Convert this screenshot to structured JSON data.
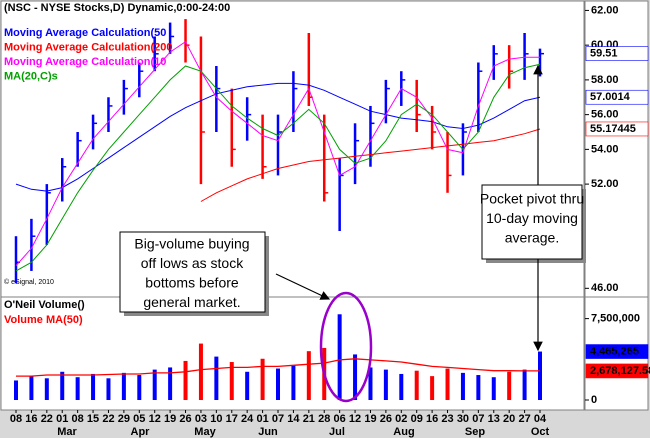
{
  "chart_data": {
    "type": "ohlc",
    "title": "(NSC - NYSE Stocks,D) Dynamic,0:00-24:00",
    "copyright": "© eSignal, 2010",
    "categories": [
      "08",
      "16",
      "22",
      "01",
      "08",
      "15",
      "22",
      "29",
      "05",
      "12",
      "19",
      "26",
      "03",
      "10",
      "17",
      "24",
      "01",
      "07",
      "14",
      "21",
      "28",
      "06",
      "12",
      "19",
      "26",
      "02",
      "09",
      "16",
      "23",
      "30",
      "07",
      "13",
      "20",
      "27",
      "04"
    ],
    "months": [
      "Mar",
      "Apr",
      "May",
      "Jun",
      "Jul",
      "Aug",
      "Sep",
      "Oct"
    ],
    "high": [
      49,
      50,
      52,
      53.5,
      55,
      56,
      57,
      58,
      59,
      60.5,
      61.3,
      61.5,
      60.5,
      58.8,
      57.5,
      57,
      56,
      56,
      58.5,
      60.7,
      56,
      53.5,
      55.5,
      56.5,
      58,
      58.5,
      58,
      56.5,
      55,
      55.5,
      59,
      60,
      60,
      60.7,
      59.8
    ],
    "low": [
      46.3,
      47,
      48.5,
      51,
      53,
      54,
      55,
      56,
      57,
      58.5,
      59.5,
      59,
      52,
      55,
      53,
      54.5,
      52.3,
      52.5,
      55,
      56.5,
      51,
      49.3,
      52,
      53,
      55.5,
      56.5,
      55,
      54,
      51.5,
      52.5,
      55,
      58,
      57.5,
      58,
      58.2
    ],
    "close": [
      47.5,
      49,
      51.5,
      53,
      54.5,
      55.5,
      56.5,
      57.5,
      58.5,
      59.5,
      60.5,
      60,
      55,
      57.5,
      54,
      56,
      53,
      55,
      57.5,
      57,
      51.5,
      52.5,
      54.5,
      55.5,
      57.5,
      58,
      56,
      55,
      52.5,
      55,
      58.5,
      59.5,
      58.5,
      59.5,
      59.51
    ],
    "close_label": "59.51",
    "up_color": "#0000ff",
    "down_color": "#ff0000",
    "ylim": [
      45.5,
      62.6
    ],
    "yticks": [
      {
        "value": 46,
        "label": "46.00"
      },
      {
        "value": 52,
        "label": "52.00"
      },
      {
        "value": 54,
        "label": "54.00"
      },
      {
        "value": 56,
        "label": "56.00"
      },
      {
        "value": 58,
        "label": "58.00"
      },
      {
        "value": 60,
        "label": "60.00"
      },
      {
        "value": 62,
        "label": "62.00"
      }
    ],
    "series": [
      {
        "name": "Moving Average Calculation(50",
        "color": "#0000ff",
        "last_label": "57.0014",
        "values": [
          52.0,
          51.7,
          51.6,
          51.8,
          52.3,
          52.9,
          53.5,
          54.1,
          54.7,
          55.3,
          55.9,
          56.4,
          56.8,
          57.2,
          57.4,
          57.6,
          57.7,
          57.8,
          57.8,
          57.7,
          57.4,
          57.0,
          56.6,
          56.2,
          56.0,
          55.8,
          55.7,
          55.6,
          55.3,
          55.2,
          55.4,
          55.8,
          56.3,
          56.8,
          57.0014
        ]
      },
      {
        "name": "Moving Average Calculation(200",
        "color": "#ff0000",
        "last_label": "55.17445",
        "values": [
          null,
          null,
          null,
          null,
          null,
          null,
          null,
          null,
          null,
          null,
          null,
          null,
          51.0,
          51.5,
          51.9,
          52.3,
          52.6,
          52.9,
          53.1,
          53.3,
          53.4,
          53.5,
          53.6,
          53.7,
          53.8,
          53.9,
          54.0,
          54.1,
          54.2,
          54.3,
          54.4,
          54.5,
          54.7,
          54.9,
          55.17445
        ]
      },
      {
        "name": "Moving Average Calculation(10",
        "color": "#ff00ff",
        "values": [
          47.3,
          48.3,
          50.0,
          51.8,
          53.2,
          54.6,
          55.6,
          56.6,
          57.6,
          58.6,
          59.6,
          60.2,
          58.5,
          57.0,
          56.2,
          55.5,
          54.8,
          54.5,
          56.0,
          57.5,
          55.0,
          52.5,
          53.0,
          54.5,
          56.0,
          57.5,
          57.0,
          55.8,
          54.0,
          53.8,
          56.5,
          58.8,
          59.2,
          59.3,
          59.3
        ]
      },
      {
        "name": "MA(20,C)s",
        "color": "#00a000",
        "values": [
          47.0,
          47.5,
          48.5,
          50.0,
          51.5,
          52.8,
          54.0,
          55.0,
          56.0,
          57.0,
          58.0,
          58.8,
          58.5,
          57.5,
          56.5,
          55.8,
          55.2,
          54.8,
          55.5,
          56.3,
          55.5,
          54.0,
          53.2,
          53.5,
          54.5,
          56.0,
          56.6,
          56.0,
          55.0,
          54.0,
          55.0,
          57.0,
          58.3,
          58.7,
          58.9
        ]
      }
    ],
    "volume": {
      "title": "O'Neil Volume()",
      "values": [
        1800000,
        2200000,
        2000000,
        2600000,
        2100000,
        2400000,
        2000000,
        2500000,
        2300000,
        2800000,
        3000000,
        3600000,
        5200000,
        4000000,
        3500000,
        2600000,
        3800000,
        2900000,
        3200000,
        4500000,
        4800000,
        7900000,
        4200000,
        3000000,
        2800000,
        2400000,
        2700000,
        2200000,
        2900000,
        2500000,
        2300000,
        2100000,
        2600000,
        2800000,
        4465265
      ],
      "last_label": "4,465,265",
      "ma": {
        "name": "Volume MA(50)",
        "color": "#ff0000",
        "last_label": "2,678,127.58",
        "values": [
          2200000,
          2200000,
          2300000,
          2300000,
          2300000,
          2300000,
          2350000,
          2400000,
          2400000,
          2500000,
          2500000,
          2600000,
          2800000,
          2900000,
          3000000,
          3000000,
          3100000,
          3100000,
          3200000,
          3300000,
          3400000,
          3700000,
          3800000,
          3700000,
          3600000,
          3500000,
          3300000,
          3100000,
          3000000,
          2900000,
          2800000,
          2700000,
          2700000,
          2680000,
          2678127.58
        ]
      },
      "ylim": [
        0,
        9400000
      ],
      "yticks": [
        0,
        {
          "value": 7500000,
          "label": "7,500,000"
        }
      ]
    },
    "annotations": [
      {
        "lines": [
          "Big-volume buying",
          "off lows as stock",
          "bottoms before",
          "general market."
        ]
      },
      {
        "lines": [
          "Pocket pivot thru",
          "10-day moving",
          "average."
        ]
      }
    ]
  }
}
